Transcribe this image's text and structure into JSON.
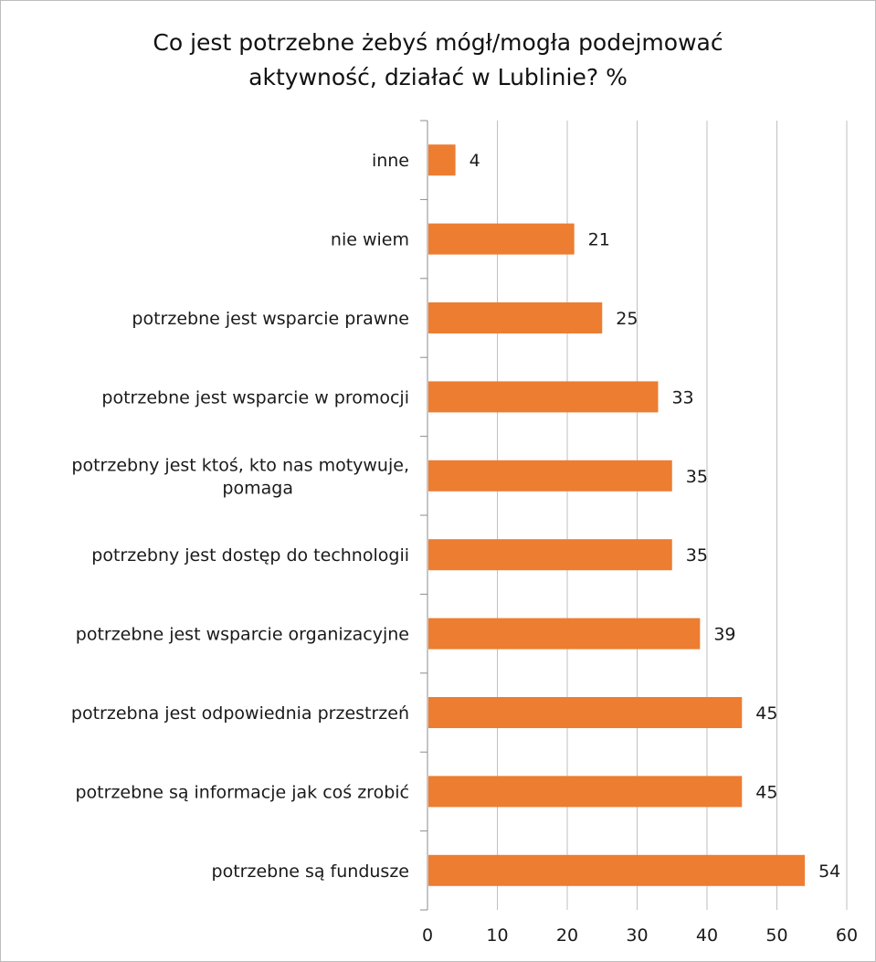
{
  "chart_data": {
    "type": "bar",
    "orientation": "horizontal",
    "title_lines": [
      "Co jest potrzebne żebyś mógł/mogła podejmować",
      "aktywność, działać w Lublinie? %"
    ],
    "categories": [
      "inne",
      "nie wiem",
      "potrzebne jest wsparcie prawne",
      "potrzebne jest wsparcie w promocji",
      "potrzebny jest ktoś, kto nas motywuje, pomaga",
      "potrzebny jest dostęp do technologii",
      "potrzebne jest wsparcie organizacyjne",
      "potrzebna jest odpowiednia przestrzeń",
      "potrzebne są informacje jak coś zrobić",
      "potrzebne są fundusze"
    ],
    "category_lines": [
      [
        "inne"
      ],
      [
        "nie wiem"
      ],
      [
        "potrzebne jest wsparcie prawne"
      ],
      [
        "potrzebne jest wsparcie w promocji"
      ],
      [
        "potrzebny jest ktoś, kto nas motywuje,",
        "pomaga"
      ],
      [
        "potrzebny jest dostęp do technologii"
      ],
      [
        "potrzebne jest wsparcie organizacyjne"
      ],
      [
        "potrzebna jest odpowiednia przestrzeń"
      ],
      [
        "potrzebne są informacje jak coś zrobić"
      ],
      [
        "potrzebne są fundusze"
      ]
    ],
    "values": [
      4,
      21,
      25,
      33,
      35,
      35,
      39,
      45,
      45,
      54
    ],
    "xlim": [
      0,
      60
    ],
    "xticks": [
      0,
      10,
      20,
      30,
      40,
      50,
      60
    ],
    "grid": "vertical",
    "legend": "none",
    "bar_color": "#ED7D31"
  }
}
